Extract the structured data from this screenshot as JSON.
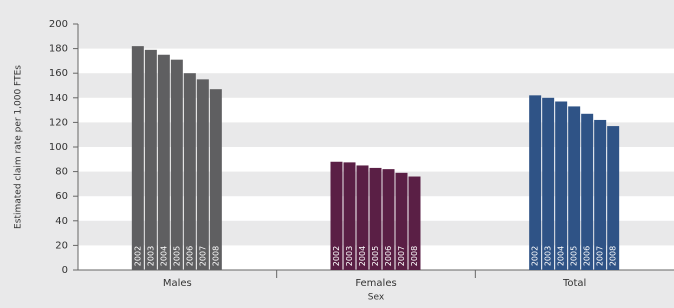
{
  "chart_data": {
    "type": "bar",
    "x_label": "Sex",
    "y_label": "Estimated claim rate per 1,000 FTEs",
    "categories": [
      "Males",
      "Females",
      "Total"
    ],
    "category_colors": [
      "#5f5f61",
      "#5a1f45",
      "#2f5386"
    ],
    "series": [
      {
        "name": "2002",
        "values": [
          182,
          88,
          142
        ]
      },
      {
        "name": "2003",
        "values": [
          179,
          87.5,
          140
        ]
      },
      {
        "name": "2004",
        "values": [
          175,
          85,
          137
        ]
      },
      {
        "name": "2005",
        "values": [
          171,
          83,
          133
        ]
      },
      {
        "name": "2006",
        "values": [
          160,
          82,
          127
        ]
      },
      {
        "name": "2007",
        "values": [
          155,
          79,
          122
        ]
      },
      {
        "name": "2008",
        "values": [
          147,
          76,
          117
        ]
      }
    ],
    "ylim": [
      0,
      200
    ],
    "yticks": [
      0,
      20,
      40,
      60,
      80,
      100,
      120,
      140,
      160,
      180,
      200
    ],
    "grid": true
  }
}
